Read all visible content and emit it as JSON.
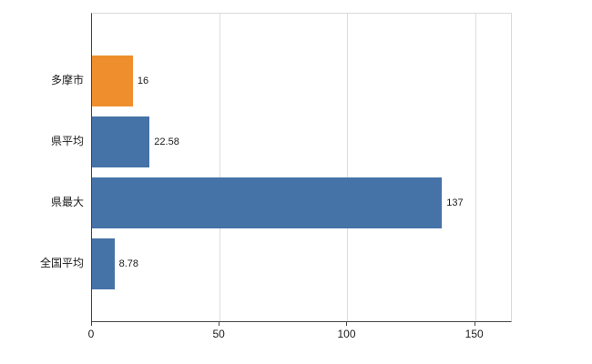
{
  "chart_data": {
    "type": "bar",
    "orientation": "horizontal",
    "title": "",
    "xlabel": "",
    "ylabel": "",
    "categories": [
      "多摩市",
      "県平均",
      "県最大",
      "全国平均"
    ],
    "values": [
      16,
      22.58,
      137,
      8.78
    ],
    "value_labels": [
      "16",
      "22.58",
      "137",
      "8.78"
    ],
    "bar_colors": [
      "#ef8e2c",
      "#4572a7",
      "#4572a7",
      "#4572a7"
    ],
    "xlim": [
      0,
      164
    ],
    "xtick_labels": [
      "0",
      "50",
      "100",
      "150"
    ],
    "xtick_values": [
      0,
      50,
      100,
      150
    ],
    "grid": true,
    "legend_position": "none",
    "background_color": "#ffffff",
    "axis_line_color": "#454545",
    "gridline_color": "#dcdcdc"
  }
}
